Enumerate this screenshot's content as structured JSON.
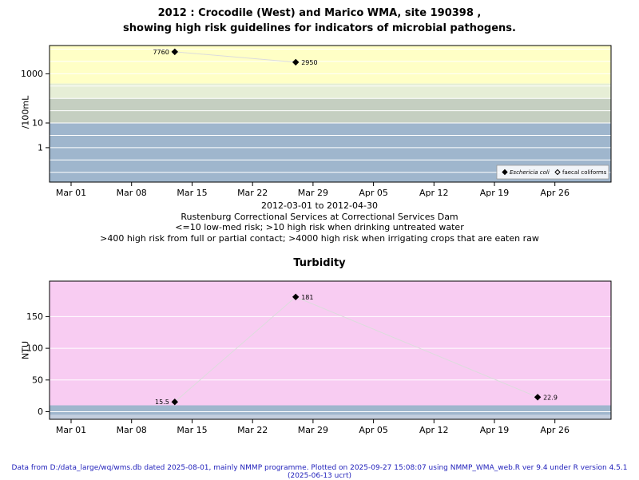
{
  "page": {
    "title_line1": "2012 : Crocodile (West) and Marico WMA, site 190398 ,",
    "title_line2": "showing high risk guidelines for indicators of microbial pathogens.",
    "subtext": {
      "line1": "2012-03-01 to 2012-04-30",
      "line2": "Rustenburg Correctional Services at Correctional Services Dam",
      "line3": "<=10 low-med risk; >10 high risk when drinking untreated water",
      "line4": ">400 high risk from full or partial contact; >4000 high risk when irrigating crops that are eaten raw"
    },
    "footer": "Data from D:/data_large/wq/wms.db dated 2025-08-01, mainly NMMP programme. Plotted on 2025-09-27 15:08:07 using NMMP_WMA_web.R ver 9.4 under R version 4.5.1 (2025-06-13 ucrt)",
    "footer_color": "#2222bb"
  },
  "chart_data": [
    {
      "name": "microbial-pathogens-chart",
      "type": "scatter",
      "title": "2012 : Crocodile (West) and Marico WMA, site 190398 , showing high risk guidelines for indicators of microbial pathogens.",
      "ylabel": "/100mL",
      "yscale": "log",
      "ylim": [
        0.04,
        14000
      ],
      "ytick_labels": [
        1,
        10,
        1000
      ],
      "x_start": "2012-03-01",
      "x_end": "2012-04-30",
      "x_tick_labels": [
        "Mar 01",
        "Mar 08",
        "Mar 15",
        "Mar 22",
        "Mar 29",
        "Apr 05",
        "Apr 12",
        "Apr 19",
        "Apr 26"
      ],
      "x_tick_days": [
        0,
        7,
        14,
        21,
        28,
        35,
        42,
        49,
        56
      ],
      "gridlines": [
        0.1,
        0.316,
        1,
        3.16,
        10,
        31.6,
        100,
        316,
        1000,
        3162,
        10000
      ],
      "grid_color": "#ffffff",
      "line_color": "#dcdcdc",
      "point_color": "#000000",
      "bands": [
        {
          "from": 400,
          "to": "top",
          "color": "#ffffc6",
          "meaning": ">400 high risk from full or partial contact; >4000 high risk when irrigating crops that are eaten raw"
        },
        {
          "from": 100,
          "to": 400,
          "color": "#e6eed6"
        },
        {
          "from": 10,
          "to": 100,
          "color": "#c5cfc1",
          "meaning": ">10 high risk when drinking untreated water"
        },
        {
          "from": "bottom",
          "to": 10,
          "color": "#9fb6cd",
          "meaning": "<=10 low-med risk"
        }
      ],
      "legend": {
        "position": "bottom-right",
        "items": [
          {
            "label": "Eschericia coli",
            "marker": "filled-diamond",
            "italic": true
          },
          {
            "label": "faecal coliforms",
            "marker": "open-diamond",
            "italic": false
          }
        ]
      },
      "series": [
        {
          "name": "Eschericia coli",
          "marker": "filled-diamond",
          "points": [
            {
              "date": "2012-03-13",
              "value": 7760,
              "label": "7760",
              "label_side": "left"
            },
            {
              "date": "2012-03-27",
              "value": 2950,
              "label": "2950",
              "label_side": "right"
            }
          ]
        },
        {
          "name": "faecal coliforms",
          "marker": "open-diamond",
          "points": []
        }
      ]
    },
    {
      "name": "turbidity-chart",
      "type": "scatter",
      "title": "Turbidity",
      "ylabel": "NTU",
      "yscale": "linear",
      "ylim": [
        -12,
        206
      ],
      "ytick_labels": [
        0,
        50,
        100,
        150
      ],
      "x_start": "2012-03-01",
      "x_end": "2012-04-30",
      "x_tick_labels": [
        "Mar 01",
        "Mar 08",
        "Mar 15",
        "Mar 22",
        "Mar 29",
        "Apr 05",
        "Apr 12",
        "Apr 19",
        "Apr 26"
      ],
      "x_tick_days": [
        0,
        7,
        14,
        21,
        28,
        35,
        42,
        49,
        56
      ],
      "gridlines": [
        0,
        50,
        100,
        150
      ],
      "grid_color": "#ffffff",
      "line_color": "#dcdcdc",
      "point_color": "#000000",
      "bands": [
        {
          "from": 10,
          "to": "top",
          "color": "#f8ccf2"
        },
        {
          "from": -5,
          "to": 10,
          "color": "#9fb6cd"
        },
        {
          "from": "bottom",
          "to": -5,
          "color": "#c3cede"
        }
      ],
      "series": [
        {
          "name": "Turbidity",
          "marker": "filled-diamond",
          "points": [
            {
              "date": "2012-03-13",
              "value": 15.5,
              "label": "15.5",
              "label_side": "left"
            },
            {
              "date": "2012-03-27",
              "value": 181,
              "label": "181",
              "label_side": "right"
            },
            {
              "date": "2012-04-24",
              "value": 22.9,
              "label": "22.9",
              "label_side": "right"
            }
          ]
        }
      ]
    }
  ]
}
